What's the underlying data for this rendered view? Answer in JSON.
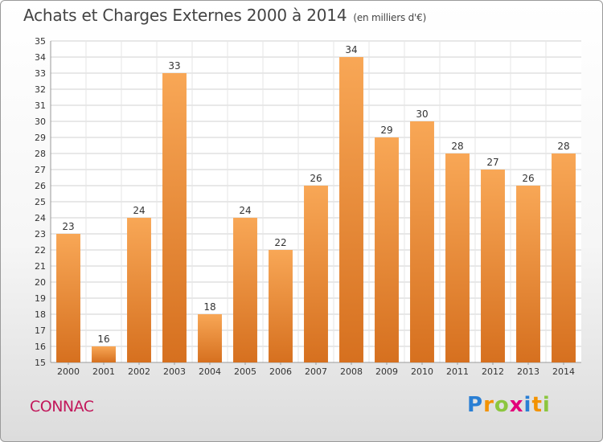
{
  "title": "Achats et Charges Externes 2000 à 2014",
  "unit": "(en milliers d'€)",
  "commune": "CONNAC",
  "logo": "Proxiti",
  "colors": {
    "bar_top": "#f8a756",
    "bar_bottom": "#d6701f",
    "grid": "#d0d0d0",
    "axis_text": "#333333",
    "commune": "#c2185b"
  },
  "chart_data": {
    "type": "bar",
    "categories": [
      "2000",
      "2001",
      "2002",
      "2003",
      "2004",
      "2005",
      "2006",
      "2007",
      "2008",
      "2009",
      "2010",
      "2011",
      "2012",
      "2013",
      "2014"
    ],
    "values": [
      23,
      16,
      24,
      33,
      18,
      24,
      22,
      26,
      34,
      29,
      30,
      28,
      27,
      26,
      28
    ],
    "ylim": [
      15,
      35
    ],
    "yticks": [
      15,
      16,
      17,
      18,
      19,
      20,
      21,
      22,
      23,
      24,
      25,
      26,
      27,
      28,
      29,
      30,
      31,
      32,
      33,
      34,
      35
    ],
    "grid": true,
    "data_labels": true,
    "xlabel": "",
    "ylabel": ""
  }
}
